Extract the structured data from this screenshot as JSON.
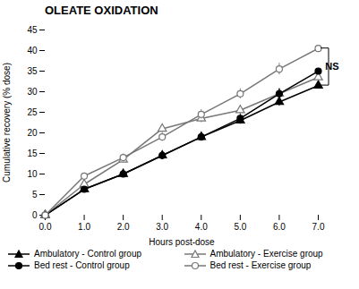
{
  "chart_data": {
    "type": "line",
    "title": "OLEATE OXIDATION",
    "xlabel": "Hours post-dose",
    "ylabel": "Cumulative recovery (% dose)",
    "x": [
      0,
      1,
      2,
      3,
      4,
      5,
      6,
      7
    ],
    "xlim": [
      0,
      7
    ],
    "xticks": [
      0,
      1,
      2,
      3,
      4,
      5,
      6,
      7
    ],
    "ylim": [
      0,
      45
    ],
    "yticks": [
      0,
      5,
      10,
      15,
      20,
      25,
      30,
      35,
      40,
      45
    ],
    "series": [
      {
        "name": "Ambulatory - Control group",
        "color": "#000000",
        "marker": "triangle",
        "values": [
          0,
          6.3,
          10.0,
          14.5,
          19.0,
          23.0,
          27.5,
          31.5
        ],
        "errors": [
          0,
          0.5,
          0.6,
          0.7,
          0.8,
          0.9,
          1.0,
          1.1
        ]
      },
      {
        "name": "Ambulatory - Exercise group",
        "color": "#777777",
        "marker": "triangle-open",
        "values": [
          0,
          7.5,
          13.5,
          21.0,
          23.5,
          25.5,
          29.5,
          33.5
        ],
        "errors": [
          0,
          0.5,
          0.7,
          0.9,
          1.0,
          1.1,
          1.2,
          1.3
        ]
      },
      {
        "name": "Bed rest - Control group",
        "color": "#000000",
        "marker": "circle",
        "values": [
          0,
          6.3,
          10.0,
          14.5,
          19.0,
          23.5,
          29.5,
          35.0
        ],
        "errors": [
          0,
          0.5,
          0.6,
          0.7,
          0.9,
          1.0,
          1.2,
          1.3
        ]
      },
      {
        "name": "Bed rest - Exercise group",
        "color": "#777777",
        "marker": "circle-open",
        "values": [
          0,
          9.5,
          14.0,
          19.0,
          24.5,
          29.5,
          35.5,
          40.5
        ],
        "errors": [
          0,
          0.7,
          0.9,
          1.0,
          1.1,
          1.2,
          1.4,
          1.5
        ]
      }
    ],
    "annotations": [
      {
        "text": "NS",
        "x": 7,
        "y1": 31.5,
        "y2": 40.5
      }
    ]
  }
}
